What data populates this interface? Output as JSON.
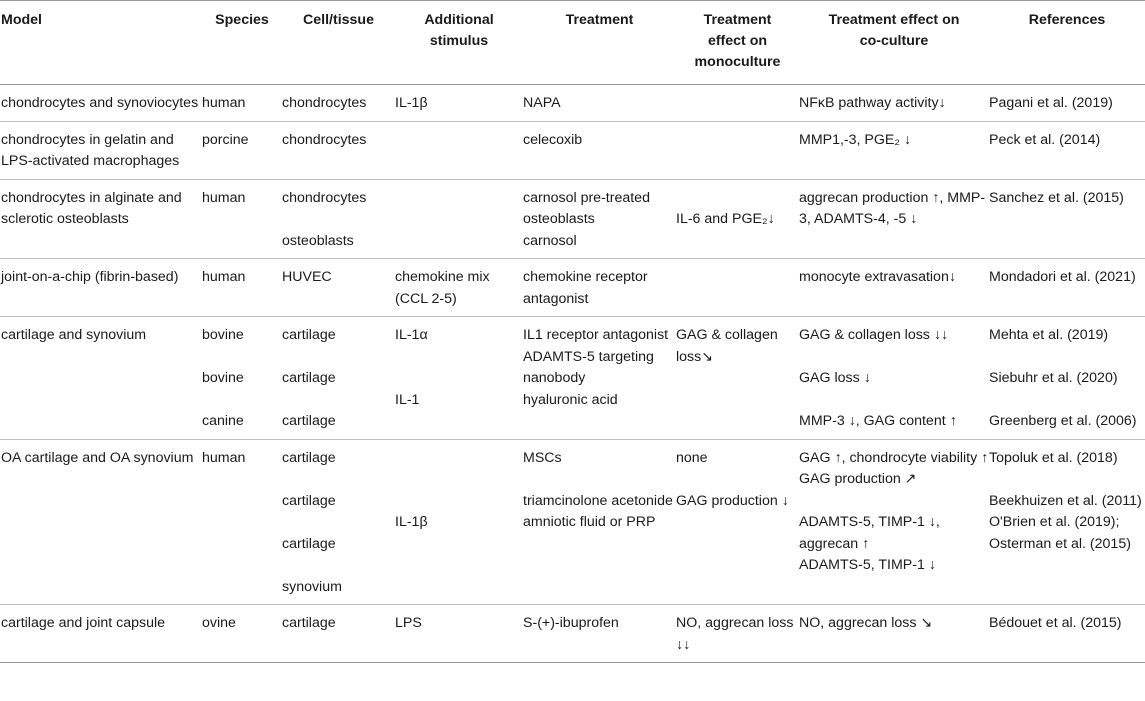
{
  "headers": {
    "model": "Model",
    "species": "Species",
    "cell": "Cell/tissue",
    "stimulus": "Additional stimulus",
    "treatment": "Treatment",
    "mono": "Treatment effect on monoculture",
    "co": "Treatment effect on co-culture",
    "refs": "References"
  },
  "rows": [
    {
      "model": "chondrocytes and synoviocytes",
      "species": [
        "human"
      ],
      "cell": [
        "chondrocytes"
      ],
      "stimulus": [
        "IL-1β"
      ],
      "treatment": [
        "NAPA"
      ],
      "mono": [
        ""
      ],
      "co": [
        "NFκB pathway activity↓"
      ],
      "refs": [
        "Pagani et al. (2019)"
      ]
    },
    {
      "model": "chondrocytes in gelatin and LPS-activated macrophages",
      "species": [
        "porcine"
      ],
      "cell": [
        "chondrocytes"
      ],
      "stimulus": [
        ""
      ],
      "treatment": [
        "celecoxib"
      ],
      "mono": [
        ""
      ],
      "co": [
        "MMP1,-3, PGE₂ ↓"
      ],
      "refs": [
        "Peck et al. (2014)"
      ]
    },
    {
      "model": "chondrocytes in alginate and sclerotic osteoblasts",
      "species": [
        "human"
      ],
      "cell": [
        "chondrocytes",
        "osteoblasts"
      ],
      "stimulus": [
        ""
      ],
      "treatment": [
        "carnosol pre-treated osteoblasts",
        "carnosol"
      ],
      "mono": [
        "",
        "IL-6 and PGE₂↓"
      ],
      "co": [
        "aggrecan production ↑, MMP-3, ADAMTS-4, -5 ↓"
      ],
      "refs": [
        "Sanchez et al. (2015)"
      ]
    },
    {
      "model": "joint-on-a-chip (fibrin-based)",
      "species": [
        "human"
      ],
      "cell": [
        "HUVEC"
      ],
      "stimulus": [
        "chemokine mix (CCL 2-5)"
      ],
      "treatment": [
        "chemokine receptor antagonist"
      ],
      "mono": [
        ""
      ],
      "co": [
        "monocyte extravasation↓"
      ],
      "refs": [
        "Mondadori et al. (2021)"
      ]
    },
    {
      "model": "cartilage and synovium",
      "species": [
        "bovine",
        "bovine",
        "canine"
      ],
      "cell": [
        "cartilage",
        "cartilage",
        "cartilage"
      ],
      "stimulus": [
        "IL-1α",
        "",
        "IL-1"
      ],
      "treatment": [
        "IL1 receptor antagonist",
        "ADAMTS-5 targeting nanobody",
        "hyaluronic acid"
      ],
      "mono": [
        "GAG & collagen loss↘",
        "",
        ""
      ],
      "co": [
        "GAG & collagen loss ↓↓",
        "GAG loss ↓",
        "MMP-3 ↓, GAG content ↑"
      ],
      "refs": [
        "Mehta et al. (2019)",
        "Siebuhr et al. (2020)",
        "Greenberg et al. (2006)"
      ]
    },
    {
      "model": "OA cartilage and OA synovium",
      "species": [
        "human"
      ],
      "cell": [
        "cartilage",
        "cartilage",
        "cartilage",
        "synovium"
      ],
      "stimulus": [
        "",
        "",
        "",
        "IL-1β"
      ],
      "treatment": [
        "MSCs",
        "triamcinolone acetonide",
        "amniotic fluid or PRP",
        ""
      ],
      "mono": [
        "none",
        "GAG production ↓",
        "",
        ""
      ],
      "co": [
        "GAG ↑, chondrocyte viability ↑",
        "GAG production ↗",
        "ADAMTS-5, TIMP-1 ↓, aggrecan ↑",
        "ADAMTS-5, TIMP-1 ↓"
      ],
      "refs": [
        "Topoluk et al. (2018)",
        "Beekhuizen et al. (2011)",
        "O'Brien et al. (2019); Osterman et al. (2015)",
        ""
      ]
    },
    {
      "model": "cartilage and joint capsule",
      "species": [
        "ovine"
      ],
      "cell": [
        "cartilage"
      ],
      "stimulus": [
        "LPS"
      ],
      "treatment": [
        "S-(+)-ibuprofen"
      ],
      "mono": [
        "NO, aggrecan loss ↓↓"
      ],
      "co": [
        "NO, aggrecan loss ↘"
      ],
      "refs": [
        "Bédouet et al. (2015)"
      ]
    }
  ]
}
